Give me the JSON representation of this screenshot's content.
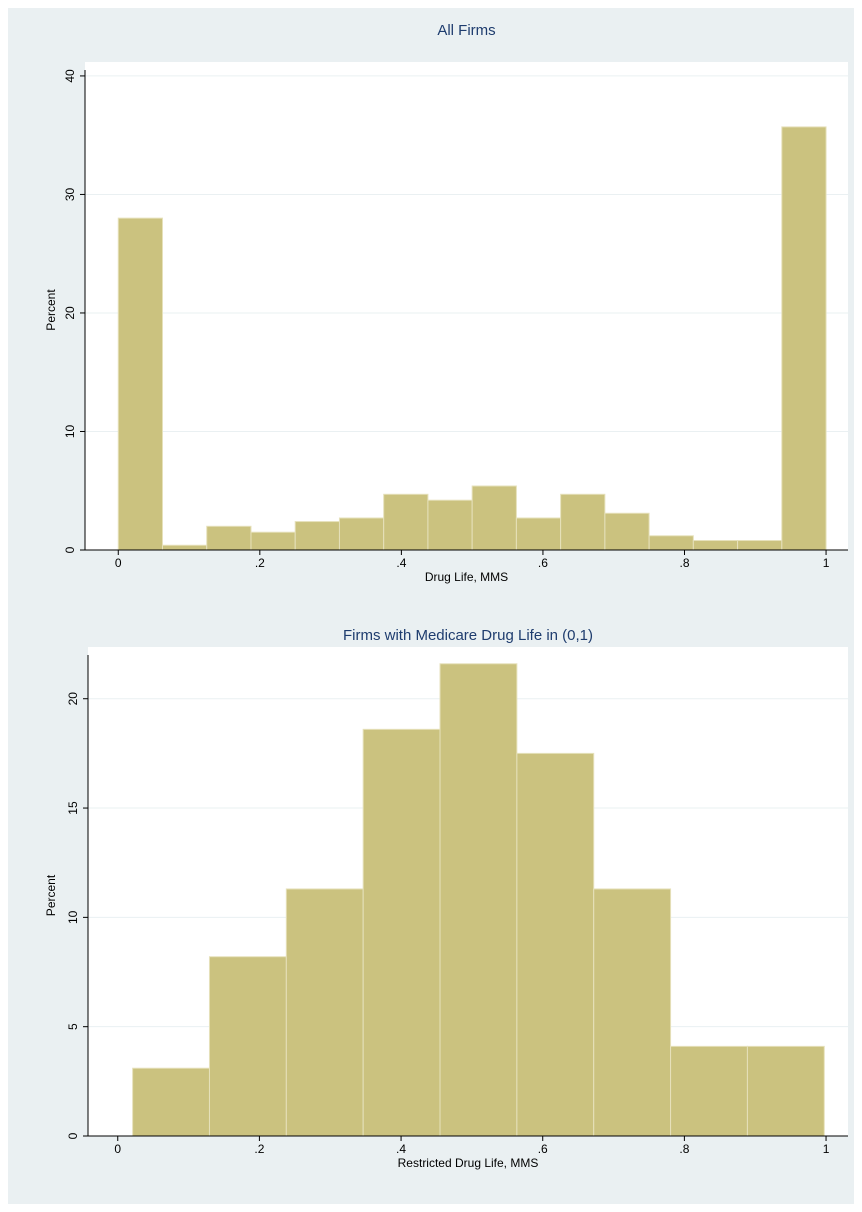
{
  "chart_data": [
    {
      "type": "histogram",
      "title": "All Firms",
      "x_label": "Drug Life, MMS",
      "y_label": "Percent",
      "bins": [
        0,
        0.0625,
        0.125,
        0.1875,
        0.25,
        0.3125,
        0.375,
        0.4375,
        0.5,
        0.5625,
        0.625,
        0.6875,
        0.75,
        0.8125,
        0.875,
        0.9375,
        1
      ],
      "values": [
        28,
        0.4,
        2.0,
        1.5,
        2.4,
        2.7,
        4.7,
        4.2,
        5.4,
        2.7,
        4.7,
        3.1,
        1.2,
        0.8,
        0.8,
        35.7
      ],
      "color": "#cbc27f",
      "xlim": [
        -0.047,
        1.031
      ],
      "ylim": [
        0,
        40.5
      ],
      "xticks": [
        0,
        {
          "value": 0.2,
          "label": ".2"
        },
        {
          "value": 0.4,
          "label": ".4"
        },
        {
          "value": 0.6,
          "label": ".6"
        },
        {
          "value": 0.8,
          "label": ".8"
        },
        1
      ],
      "yticks": [
        0,
        10,
        20,
        30,
        40
      ],
      "grid": true
    },
    {
      "type": "histogram",
      "title": "Firms with Medicare Drug Life in (0,1)",
      "x_label": "Restricted Drug Life, MMS",
      "y_label": "Percent",
      "bins": [
        0.021,
        0.1295,
        0.238,
        0.3465,
        0.455,
        0.5635,
        0.672,
        0.7805,
        0.889,
        0.9975
      ],
      "values": [
        3.1,
        8.2,
        11.3,
        18.6,
        21.6,
        17.5,
        11.3,
        4.1,
        4.1
      ],
      "color": "#cbc27f",
      "xlim": [
        -0.042,
        1.031
      ],
      "ylim": [
        0,
        22
      ],
      "xticks": [
        0,
        {
          "value": 0.2,
          "label": ".2"
        },
        {
          "value": 0.4,
          "label": ".4"
        },
        {
          "value": 0.6,
          "label": ".6"
        },
        {
          "value": 0.8,
          "label": ".8"
        },
        1
      ],
      "yticks": [
        0,
        5,
        10,
        15,
        20
      ],
      "grid": true
    }
  ]
}
